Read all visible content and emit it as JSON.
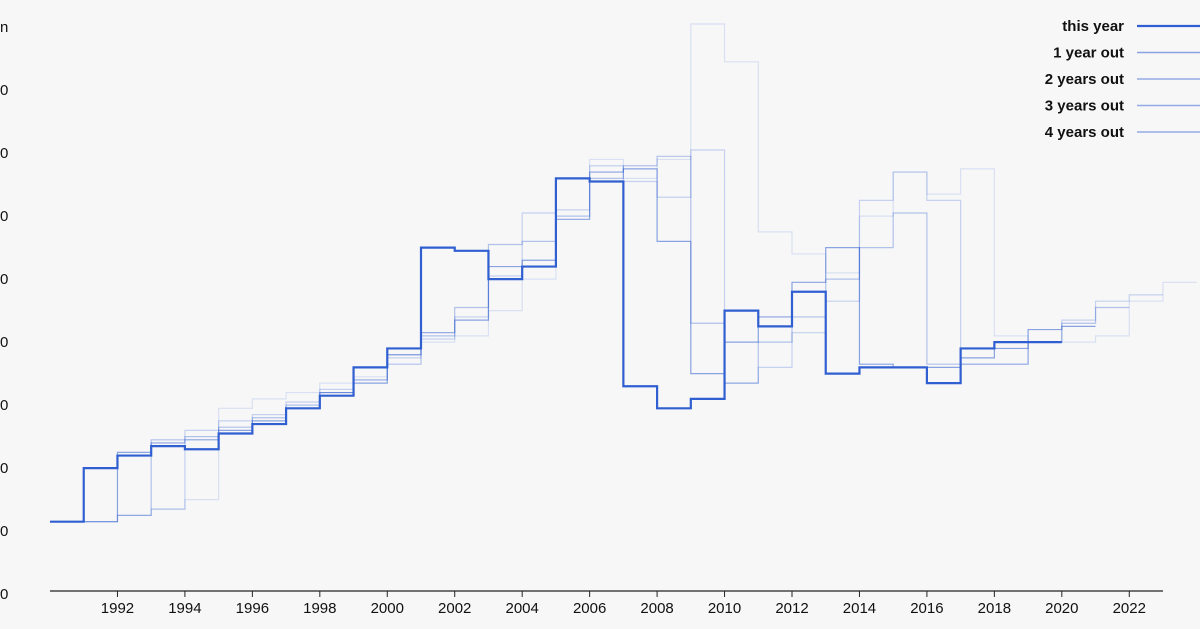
{
  "chart_data": {
    "type": "line",
    "step": true,
    "title": "",
    "xlabel": "",
    "ylabel": "",
    "y_axis_visible_labels": [
      "n",
      "0",
      "0",
      "0",
      "0",
      "0",
      "0",
      "0",
      "0",
      "0"
    ],
    "x_tick_labels": [
      "1992",
      "1994",
      "1996",
      "1998",
      "2000",
      "2002",
      "2004",
      "2006",
      "2008",
      "2010",
      "2012",
      "2014",
      "2016",
      "2018",
      "2020",
      "2022"
    ],
    "xlim": [
      1990,
      2023
    ],
    "ylim": [
      0,
      9
    ],
    "grid": false,
    "legend_position": "top-right",
    "series": [
      {
        "name": "this year",
        "color": "#2f5fd0",
        "opacity": 1.0,
        "x": [
          1990,
          1991,
          1992,
          1993,
          1994,
          1995,
          1996,
          1997,
          1998,
          1999,
          2000,
          2001,
          2002,
          2003,
          2004,
          2005,
          2006,
          2007,
          2008,
          2009,
          2010,
          2011,
          2012,
          2013,
          2014,
          2015,
          2016,
          2017,
          2018,
          2019
        ],
        "y": [
          1.1,
          1.95,
          2.15,
          2.3,
          2.25,
          2.5,
          2.65,
          2.9,
          3.1,
          3.55,
          3.85,
          5.45,
          5.4,
          4.95,
          5.15,
          6.55,
          6.5,
          3.25,
          2.9,
          3.05,
          4.45,
          4.2,
          4.75,
          3.45,
          3.55,
          3.55,
          3.3,
          3.85,
          3.95,
          3.95
        ]
      },
      {
        "name": "1 year out",
        "color": "#2f5fd0",
        "opacity": 0.55,
        "x": [
          1990,
          1991,
          1992,
          1993,
          1994,
          1995,
          1996,
          1997,
          1998,
          1999,
          2000,
          2001,
          2002,
          2003,
          2004,
          2005,
          2006,
          2007,
          2008,
          2009,
          2010,
          2011,
          2012,
          2013,
          2014,
          2015,
          2016,
          2017,
          2018,
          2019,
          2020
        ],
        "y": [
          1.1,
          1.1,
          2.2,
          2.35,
          2.4,
          2.55,
          2.7,
          2.9,
          3.15,
          3.3,
          3.75,
          4.1,
          4.3,
          5.15,
          5.25,
          5.9,
          6.65,
          6.7,
          5.55,
          3.45,
          3.95,
          4.35,
          4.9,
          5.45,
          3.6,
          3.55,
          3.55,
          3.7,
          3.85,
          4.15,
          4.2
        ]
      },
      {
        "name": "2 years out",
        "color": "#2f5fd0",
        "opacity": 0.35,
        "x": [
          1990,
          1991,
          1992,
          1993,
          1994,
          1995,
          1996,
          1997,
          1998,
          1999,
          2000,
          2001,
          2002,
          2003,
          2004,
          2005,
          2006,
          2007,
          2008,
          2009,
          2010,
          2011,
          2012,
          2013,
          2014,
          2015,
          2016,
          2017,
          2018,
          2019,
          2020,
          2021
        ],
        "y": [
          null,
          1.1,
          1.2,
          2.4,
          2.45,
          2.6,
          2.75,
          2.95,
          3.15,
          3.35,
          3.6,
          4.05,
          4.5,
          5.5,
          5.55,
          5.95,
          6.55,
          6.75,
          6.9,
          4.25,
          3.3,
          3.95,
          4.35,
          4.95,
          5.45,
          6.0,
          3.6,
          3.6,
          3.6,
          3.95,
          4.25,
          4.5
        ]
      },
      {
        "name": "3 years out",
        "color": "#2f5fd0",
        "opacity": 0.25,
        "x": [
          1990,
          1991,
          1992,
          1993,
          1994,
          1995,
          1996,
          1997,
          1998,
          1999,
          2000,
          2001,
          2002,
          2003,
          2004,
          2005,
          2006,
          2007,
          2008,
          2009,
          2010,
          2011,
          2012,
          2013,
          2014,
          2015,
          2016,
          2017,
          2018,
          2019,
          2020,
          2021,
          2022
        ],
        "y": [
          null,
          null,
          1.2,
          1.3,
          2.55,
          2.7,
          2.8,
          3.0,
          3.2,
          3.35,
          3.7,
          4.0,
          4.35,
          5.0,
          6.0,
          6.05,
          6.75,
          6.5,
          6.25,
          7.0,
          3.3,
          3.55,
          4.1,
          4.6,
          6.2,
          6.65,
          6.2,
          3.6,
          3.6,
          3.95,
          4.3,
          4.6,
          4.7
        ]
      },
      {
        "name": "4 years out",
        "color": "#2f5fd0",
        "opacity": 0.15,
        "x": [
          1990,
          1991,
          1992,
          1993,
          1994,
          1995,
          1996,
          1997,
          1998,
          1999,
          2000,
          2001,
          2002,
          2003,
          2004,
          2005,
          2006,
          2007,
          2008,
          2009,
          2010,
          2011,
          2012,
          2013,
          2014,
          2015,
          2016,
          2017,
          2018,
          2019,
          2020,
          2021,
          2022,
          2023
        ],
        "y": [
          null,
          null,
          null,
          1.3,
          1.45,
          2.9,
          3.05,
          3.15,
          3.3,
          3.4,
          3.75,
          3.95,
          4.05,
          4.45,
          4.95,
          6.55,
          6.85,
          6.55,
          6.85,
          9.0,
          8.4,
          5.7,
          5.35,
          5.05,
          5.95,
          6.65,
          6.3,
          6.7,
          4.05,
          3.95,
          3.95,
          4.05,
          4.6,
          4.9
        ]
      }
    ]
  }
}
